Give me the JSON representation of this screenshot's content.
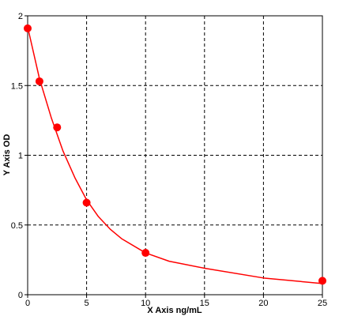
{
  "chart_data": {
    "type": "scatter",
    "x_label": "X Axis ng/mL",
    "y_label": "Y Axis OD",
    "points": {
      "x": [
        0,
        1,
        2.5,
        5,
        10,
        25
      ],
      "values": [
        1.91,
        1.53,
        1.2,
        0.66,
        0.3,
        0.1
      ],
      "color": "#ff0000"
    },
    "curve": {
      "x": [
        0,
        1,
        2,
        3,
        4,
        5,
        6,
        7,
        8,
        10,
        12,
        15,
        20,
        25
      ],
      "values": [
        1.92,
        1.55,
        1.27,
        1.03,
        0.84,
        0.68,
        0.56,
        0.47,
        0.4,
        0.3,
        0.24,
        0.19,
        0.12,
        0.08
      ],
      "color": "#ff0000"
    },
    "xlim": [
      0,
      25
    ],
    "xticks": [
      0,
      5,
      10,
      15,
      20,
      25
    ],
    "ylim": [
      0,
      2
    ],
    "yticks": [
      0,
      0.5,
      1,
      1.5,
      2
    ],
    "grid": true
  }
}
